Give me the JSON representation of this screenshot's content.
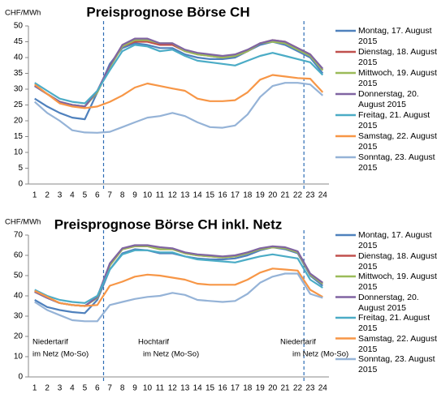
{
  "chart_data": [
    {
      "type": "line",
      "title": "Preisprognose Börse CH",
      "y_label": "CHF/MWh",
      "categories": [
        "1",
        "2",
        "3",
        "4",
        "5",
        "6",
        "7",
        "8",
        "9",
        "10",
        "11",
        "12",
        "13",
        "14",
        "15",
        "16",
        "17",
        "18",
        "19",
        "20",
        "21",
        "22",
        "23",
        "24"
      ],
      "ylim": [
        0,
        50
      ],
      "yticks": [
        0,
        5,
        10,
        15,
        20,
        25,
        30,
        35,
        40,
        45,
        50
      ],
      "grid": false,
      "series": [
        {
          "name": "Montag, 17. August 2015",
          "color": "#4f81bd",
          "values": [
            27,
            24.5,
            22.5,
            21,
            20.5,
            29,
            38,
            43,
            44.5,
            44,
            43,
            43,
            41,
            40,
            39.5,
            39.5,
            40,
            42,
            44,
            45,
            44,
            42,
            40,
            35
          ]
        },
        {
          "name": "Dienstag, 18. August 2015",
          "color": "#c0504d",
          "values": [
            31,
            28.5,
            26,
            25,
            24.5,
            29,
            37,
            43.5,
            45,
            45,
            44,
            44,
            42,
            41,
            40.5,
            40,
            40.5,
            42,
            44.5,
            45.5,
            45,
            43,
            41,
            36
          ]
        },
        {
          "name": "Mittwoch, 19. August 2015",
          "color": "#9bbb59",
          "values": [
            31,
            28.5,
            26,
            25,
            24.5,
            29,
            37,
            43.5,
            45.5,
            45.5,
            44.5,
            44.5,
            42,
            41,
            40.5,
            40,
            40.5,
            42,
            44.5,
            45,
            44.5,
            42.5,
            40.5,
            36
          ]
        },
        {
          "name": "Donnerstag, 20. August 2015",
          "color": "#8064a2",
          "values": [
            31,
            28.5,
            26,
            25,
            24.5,
            29.5,
            37.5,
            44,
            46,
            46,
            44.5,
            44.5,
            42.5,
            41.5,
            41,
            40.5,
            41,
            42.5,
            44.5,
            45.5,
            45,
            43,
            41,
            36.5
          ]
        },
        {
          "name": "Freitag, 21. August 2015",
          "color": "#4bacc6",
          "values": [
            32,
            29.5,
            27,
            26,
            25.5,
            29.5,
            36,
            42,
            44,
            43.5,
            42,
            42.5,
            40.5,
            39,
            38.5,
            38,
            37.5,
            39,
            40.5,
            41.5,
            40.5,
            39.5,
            38.5,
            34.5
          ]
        },
        {
          "name": "Samstag, 22. August 2015",
          "color": "#f79646",
          "values": [
            31.5,
            28.5,
            25.5,
            24.5,
            24,
            24.5,
            26,
            28,
            30.5,
            31.8,
            31,
            30.2,
            29.5,
            27,
            26.2,
            26.2,
            26.5,
            29,
            33,
            34.5,
            34,
            33.5,
            33.3,
            29
          ]
        },
        {
          "name": "Sonntag, 23. August 2015",
          "color": "#95b3d7",
          "values": [
            26,
            22.5,
            20,
            17,
            16.3,
            16.2,
            16.5,
            18,
            19.5,
            21,
            21.5,
            22.5,
            21.5,
            19.5,
            18,
            17.8,
            18.5,
            22,
            27.5,
            31,
            32,
            32,
            31.5,
            28
          ]
        }
      ]
    },
    {
      "type": "line",
      "title": "Preisprognose Börse CH inkl. Netz",
      "y_label": "CHF/MWh",
      "categories": [
        "1",
        "2",
        "3",
        "4",
        "5",
        "6",
        "7",
        "8",
        "9",
        "10",
        "11",
        "12",
        "13",
        "14",
        "15",
        "16",
        "17",
        "18",
        "19",
        "20",
        "21",
        "22",
        "23",
        "24"
      ],
      "ylim": [
        0,
        70
      ],
      "yticks": [
        0,
        10,
        20,
        30,
        40,
        50,
        60,
        70
      ],
      "grid": false,
      "annotations": [
        [
          "Niedertarif",
          "im Netz (Mo-So)"
        ],
        [
          "Hochtarif",
          "im Netz (Mo-So)"
        ],
        [
          "Niedertarif",
          "im Netz (Mo-So)"
        ]
      ],
      "series": [
        {
          "name": "Montag, 17. August 2015",
          "color": "#4f81bd",
          "values": [
            38,
            34.5,
            33,
            32,
            31.5,
            38,
            53,
            61,
            63,
            62.5,
            61,
            61,
            59.5,
            58.5,
            58,
            58,
            58.5,
            60,
            62.5,
            64,
            63,
            61,
            50,
            45
          ]
        },
        {
          "name": "Dienstag, 18. August 2015",
          "color": "#c0504d",
          "values": [
            42,
            39,
            36.5,
            35.5,
            35,
            39,
            55,
            63,
            64.5,
            64.5,
            63,
            63,
            61,
            60,
            59.5,
            59,
            59.5,
            61,
            63,
            64,
            63.5,
            61.5,
            50.5,
            46
          ]
        },
        {
          "name": "Mittwoch, 19. August 2015",
          "color": "#9bbb59",
          "values": [
            42,
            39,
            36.5,
            35.5,
            35,
            39,
            55,
            63,
            64.5,
            64.5,
            63,
            63,
            61,
            60,
            59.5,
            59,
            59.5,
            61,
            63,
            64,
            63.5,
            61.5,
            50.5,
            46
          ]
        },
        {
          "name": "Donnerstag, 20. August 2015",
          "color": "#8064a2",
          "values": [
            42,
            39,
            36.5,
            35.5,
            35,
            39.5,
            56,
            63.5,
            65,
            65,
            64,
            63.5,
            61.5,
            60.5,
            60,
            59.5,
            60,
            61.5,
            63.5,
            64.5,
            64,
            62,
            51,
            46.5
          ]
        },
        {
          "name": "Freitag, 21. August 2015",
          "color": "#4bacc6",
          "values": [
            43,
            40,
            38,
            37,
            36.5,
            40,
            53,
            60.5,
            62.5,
            62.5,
            61.5,
            61.5,
            59.5,
            58,
            57.5,
            57,
            56.5,
            58,
            59.5,
            60.5,
            59.5,
            58.5,
            48,
            44
          ]
        },
        {
          "name": "Samstag, 22. August 2015",
          "color": "#f79646",
          "values": [
            42.5,
            39.5,
            36.5,
            35.5,
            35,
            35.5,
            45,
            47,
            49.5,
            50.5,
            50,
            49,
            48,
            46,
            45.5,
            45.5,
            45.5,
            48,
            51.5,
            53.5,
            53,
            52.5,
            43,
            39.5
          ]
        },
        {
          "name": "Sonntag, 23. August 2015",
          "color": "#95b3d7",
          "values": [
            37,
            33,
            30.5,
            28,
            27.5,
            27.5,
            35.5,
            37,
            38.5,
            39.5,
            40,
            41.5,
            40.5,
            38,
            37.5,
            37,
            37.5,
            41,
            46.5,
            49.5,
            51,
            51,
            41,
            39
          ]
        }
      ]
    }
  ]
}
